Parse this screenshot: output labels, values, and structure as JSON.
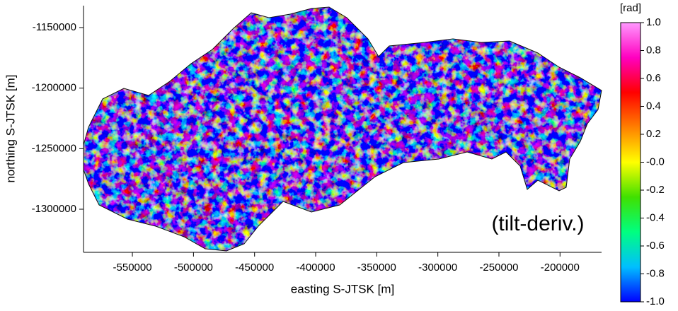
{
  "chart_data": {
    "type": "raster-map",
    "annotation": "(tilt-deriv.)",
    "x_label": "easting S-JTSK [m]",
    "y_label": "northing S-JTSK [m]",
    "xlim": [
      -590000,
      -166000
    ],
    "xticks": [
      -550000,
      -500000,
      -450000,
      -400000,
      -350000,
      -300000,
      -250000,
      -200000
    ],
    "ylim": [
      -1335600,
      -1131900
    ],
    "yticks": [
      -1150000,
      -1200000,
      -1250000,
      -1300000
    ],
    "colorbar": {
      "label": "[rad]",
      "lim": [
        -1,
        1
      ],
      "ticks": [
        {
          "value": 1,
          "label": "1.0"
        },
        0.8,
        0.6,
        0.4,
        0.2,
        {
          "value": 0,
          "label": "-0.0"
        },
        -0.2,
        -0.4,
        -0.6,
        -0.8,
        {
          "value": -1,
          "label": "-1.0"
        }
      ],
      "colormap": [
        "#0000ff",
        "#00bfff",
        "#00ff80",
        "#40e000",
        "#ffff00",
        "#ff8000",
        "#ff0000",
        "#ff00c0",
        "#ff99ff"
      ]
    }
  }
}
